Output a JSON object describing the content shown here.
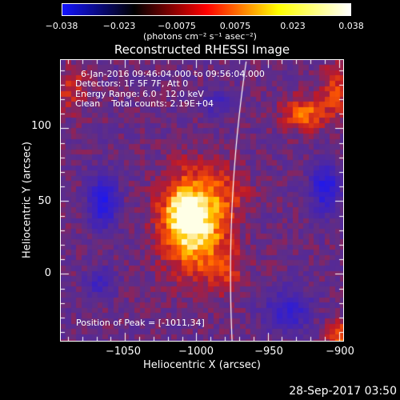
{
  "colorbar": {
    "tick_labels": [
      "−0.038",
      "−0.023",
      "−0.0075",
      "0.0075",
      "0.023",
      "0.038"
    ],
    "tick_values": [
      -0.038,
      -0.023,
      -0.0075,
      0.0075,
      0.023,
      0.038
    ],
    "units_label": "(photons cm⁻² s⁻¹ asec⁻²)",
    "colors": [
      "#1414ff",
      "#000000",
      "#ff0000",
      "#ffff00",
      "#ffffff"
    ]
  },
  "image": {
    "title": "Reconstructed RHESSI Image",
    "info_lines": [
      "6-Jan-2016 09:46:04.000 to 09:56:04.000",
      "Detectors: 1F 5F 7F, Att 0",
      "Energy Range: 6.0 - 12.0 keV",
      "Clean    Total counts: 2.19E+04"
    ],
    "peak_position": "Position of Peak = [-1011,34]",
    "x_axis": {
      "label": "Heliocentric X (arcsec)",
      "ticks": [
        "−1050",
        "−1000",
        "−950",
        "−900"
      ],
      "tick_values": [
        -1050,
        -1000,
        -950,
        -900
      ],
      "range": [
        -1095,
        -897
      ]
    },
    "y_axis": {
      "label": "Heliocentric Y (arcsec)",
      "ticks": [
        "0",
        "50",
        "100"
      ],
      "tick_values": [
        0,
        50,
        100
      ],
      "range": [
        -46,
        147
      ]
    },
    "limb_color": "#ffffff"
  },
  "footer": {
    "timestamp": "28-Sep-2017 03:50"
  }
}
